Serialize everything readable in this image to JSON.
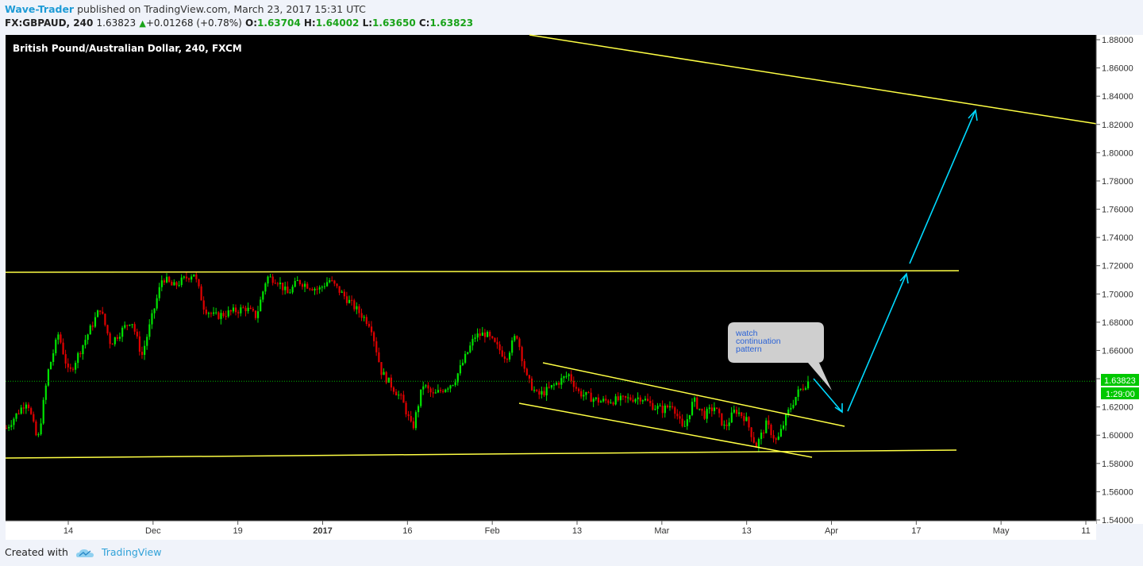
{
  "header": {
    "author": "Wave-Trader",
    "published": "published on TradingView.com, March 23, 2017 15:31 UTC",
    "symbol": "FX:GBPAUD, 240",
    "last": "1.63823",
    "change": "+0.01268 (+0.78%)",
    "open_label": "O:",
    "open": "1.63704",
    "high_label": "H:",
    "high": "1.64002",
    "low_label": "L:",
    "low": "1.63650",
    "close_label": "C:",
    "close": "1.63823"
  },
  "footer": {
    "created_with": "Created with",
    "brand": "TradingView"
  },
  "chart_data": {
    "type": "candlestick",
    "title": "British Pound/Australian Dollar, 240, FXCM",
    "ylim": [
      1.54,
      1.88
    ],
    "y_ticks": [
      "1.88000",
      "1.86000",
      "1.84000",
      "1.82000",
      "1.80000",
      "1.78000",
      "1.76000",
      "1.74000",
      "1.72000",
      "1.70000",
      "1.68000",
      "1.66000",
      "1.64000",
      "1.62000",
      "1.60000",
      "1.58000",
      "1.56000",
      "1.54000"
    ],
    "x_ticks": [
      "14",
      "Dec",
      "19",
      "2017",
      "16",
      "Feb",
      "13",
      "Mar",
      "13",
      "Apr",
      "17",
      "May",
      "11"
    ],
    "last_price": "1.63823",
    "countdown": "1:29:00",
    "colors": {
      "up": "#00e400",
      "down": "#e00000",
      "drawing": "#ffff44",
      "arrow": "#00d9ff",
      "background": "#000000"
    },
    "price_path": [
      [
        0,
        1.605
      ],
      [
        2,
        1.625
      ],
      [
        3,
        1.595
      ],
      [
        4,
        1.645
      ],
      [
        5,
        1.672
      ],
      [
        6,
        1.643
      ],
      [
        9,
        1.69
      ],
      [
        10,
        1.665
      ],
      [
        12,
        1.682
      ],
      [
        13,
        1.656
      ],
      [
        15,
        1.712
      ],
      [
        16,
        1.705
      ],
      [
        18,
        1.715
      ],
      [
        19,
        1.69
      ],
      [
        20,
        1.684
      ],
      [
        23,
        1.69
      ],
      [
        24,
        1.684
      ],
      [
        25,
        1.712
      ],
      [
        26,
        1.71
      ],
      [
        27,
        1.7
      ],
      [
        28,
        1.709
      ],
      [
        30,
        1.703
      ],
      [
        31,
        1.71
      ],
      [
        32,
        1.702
      ],
      [
        35,
        1.678
      ],
      [
        36,
        1.645
      ],
      [
        38,
        1.625
      ],
      [
        39,
        1.604
      ],
      [
        40,
        1.636
      ],
      [
        41,
        1.628
      ],
      [
        43,
        1.638
      ],
      [
        45,
        1.67
      ],
      [
        46,
        1.672
      ],
      [
        48,
        1.655
      ],
      [
        49,
        1.672
      ],
      [
        50,
        1.64
      ],
      [
        51,
        1.628
      ],
      [
        52,
        1.632
      ],
      [
        54,
        1.643
      ],
      [
        55,
        1.63
      ],
      [
        57,
        1.624
      ],
      [
        59,
        1.625
      ],
      [
        61,
        1.627
      ],
      [
        62,
        1.621
      ],
      [
        63,
        1.618
      ],
      [
        64,
        1.622
      ],
      [
        65,
        1.603
      ],
      [
        66,
        1.625
      ],
      [
        67,
        1.614
      ],
      [
        68,
        1.62
      ],
      [
        69,
        1.605
      ],
      [
        70,
        1.618
      ],
      [
        71,
        1.612
      ],
      [
        72,
        1.592
      ],
      [
        73,
        1.608
      ],
      [
        74,
        1.595
      ],
      [
        75,
        1.615
      ],
      [
        76,
        1.63
      ],
      [
        77,
        1.638
      ]
    ],
    "drawings": [
      {
        "type": "trendline",
        "name": "upper-channel-line"
      },
      {
        "type": "trendline",
        "name": "resistance-line",
        "level": 1.716
      },
      {
        "type": "trendline",
        "name": "support-line",
        "level": 1.585
      },
      {
        "type": "trendline",
        "name": "wedge-top"
      },
      {
        "type": "trendline",
        "name": "wedge-bottom"
      }
    ],
    "annotation": {
      "text": [
        "watch",
        "continuation",
        "pattern"
      ]
    }
  }
}
